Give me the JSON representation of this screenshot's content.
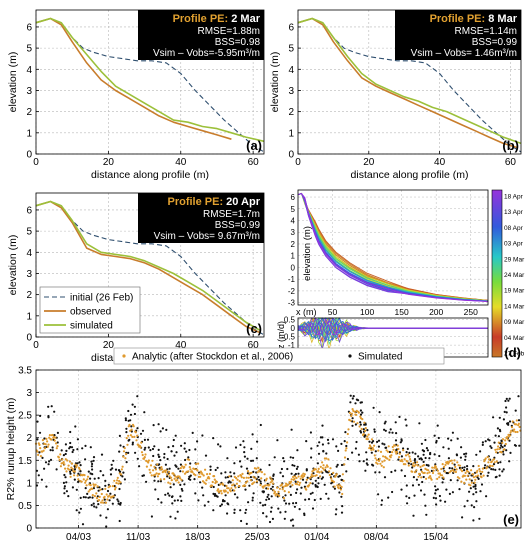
{
  "chart_data": [
    {
      "type": "line",
      "panel": "(a)",
      "info_box": {
        "title_prefix": "Profile PE: ",
        "title_date": "2 Mar",
        "rmse": "RMSE=1.88m",
        "bss": "BSS=0.98",
        "vdiff": "Vsim – Vobs=-5.95m³/m"
      },
      "xlabel": "distance along profile (m)",
      "ylabel": "elevation (m)",
      "xlim": [
        0,
        63
      ],
      "ylim": [
        0,
        6.8
      ],
      "xticks": [
        0,
        20,
        40,
        60
      ],
      "yticks": [
        0,
        1,
        2,
        3,
        4,
        5,
        6
      ],
      "series": [
        {
          "key": "initial",
          "color": "#2f4f6f",
          "dashed": true,
          "x": [
            0,
            4,
            7,
            10,
            13,
            16,
            20,
            24,
            28,
            32,
            36,
            40,
            44,
            48,
            52,
            56,
            60,
            63
          ],
          "y": [
            6.2,
            6.4,
            6.2,
            5.5,
            5.0,
            4.8,
            4.6,
            4.5,
            4.4,
            4.4,
            4.3,
            3.8,
            3.0,
            2.3,
            1.6,
            1.0,
            0.4,
            0.1
          ]
        },
        {
          "key": "observed",
          "color": "#c87d2c",
          "x": [
            0,
            4,
            7,
            10,
            14,
            18,
            22,
            26,
            30,
            34,
            38,
            42,
            46,
            50,
            54
          ],
          "y": [
            6.2,
            6.4,
            6.1,
            5.3,
            4.3,
            3.5,
            3.0,
            2.6,
            2.2,
            1.8,
            1.5,
            1.3,
            1.1,
            0.9,
            0.7
          ]
        },
        {
          "key": "simulated",
          "color": "#9cc03a",
          "x": [
            0,
            4,
            7,
            10,
            14,
            18,
            22,
            26,
            30,
            34,
            38,
            42,
            46,
            50,
            54,
            58,
            63
          ],
          "y": [
            6.2,
            6.4,
            6.2,
            5.5,
            4.7,
            3.9,
            3.2,
            2.8,
            2.4,
            2.0,
            1.6,
            1.5,
            1.3,
            1.2,
            1.0,
            0.8,
            0.6
          ]
        }
      ]
    },
    {
      "type": "line",
      "panel": "(b)",
      "info_box": {
        "title_prefix": "Profile PE: ",
        "title_date": "8 Mar",
        "rmse": "RMSE=1.14m",
        "bss": "BSS=0.99",
        "vdiff": "Vsim – Vobs= 1.46m³/m"
      },
      "xlabel": "distance along profile (m)",
      "ylabel": "elevation (m)",
      "xlim": [
        0,
        63
      ],
      "ylim": [
        0,
        6.8
      ],
      "xticks": [
        0,
        20,
        40,
        60
      ],
      "yticks": [
        0,
        1,
        2,
        3,
        4,
        5,
        6
      ],
      "series": [
        {
          "key": "initial",
          "color": "#2f4f6f",
          "dashed": true,
          "x": [
            0,
            4,
            7,
            10,
            13,
            16,
            20,
            24,
            28,
            32,
            36,
            40,
            44,
            48,
            52,
            56,
            60,
            63
          ],
          "y": [
            6.2,
            6.4,
            6.2,
            5.5,
            5.0,
            4.8,
            4.6,
            4.5,
            4.4,
            4.4,
            4.3,
            3.8,
            3.0,
            2.3,
            1.6,
            1.0,
            0.4,
            0.1
          ]
        },
        {
          "key": "observed",
          "color": "#c87d2c",
          "x": [
            0,
            4,
            7,
            10,
            14,
            18,
            22,
            26,
            30,
            34,
            38,
            42,
            46,
            50,
            54,
            58,
            62
          ],
          "y": [
            6.2,
            6.4,
            6.1,
            5.3,
            4.4,
            3.6,
            3.2,
            2.9,
            2.6,
            2.3,
            2.0,
            1.7,
            1.4,
            1.1,
            0.8,
            0.5,
            0.3
          ]
        },
        {
          "key": "simulated",
          "color": "#9cc03a",
          "x": [
            0,
            4,
            7,
            10,
            14,
            18,
            22,
            26,
            30,
            34,
            38,
            42,
            46,
            50,
            54,
            58,
            63
          ],
          "y": [
            6.2,
            6.4,
            6.2,
            5.5,
            4.6,
            3.8,
            3.3,
            3.0,
            2.7,
            2.5,
            2.2,
            2.0,
            1.7,
            1.4,
            1.1,
            0.8,
            0.5
          ]
        }
      ]
    },
    {
      "type": "line",
      "panel": "(c)",
      "info_box": {
        "title_prefix": "Profile PE: ",
        "title_date": "20 Apr",
        "rmse": "RMSE=1.7m",
        "bss": "BSS=0.99",
        "vdiff": "Vsim – Vobs= 9.67m³/m"
      },
      "legend": {
        "initial": "initial (26 Feb)",
        "observed": "observed",
        "simulated": "simulated"
      },
      "xlabel": "distance along profile (m)",
      "ylabel": "elevation (m)",
      "xlim": [
        0,
        63
      ],
      "ylim": [
        0,
        6.8
      ],
      "xticks": [
        0,
        20,
        40,
        60
      ],
      "yticks": [
        0,
        1,
        2,
        3,
        4,
        5,
        6
      ],
      "series": [
        {
          "key": "initial",
          "color": "#2f4f6f",
          "dashed": true,
          "x": [
            0,
            4,
            7,
            10,
            13,
            16,
            20,
            24,
            28,
            32,
            36,
            40,
            44,
            48,
            52,
            56,
            60,
            63
          ],
          "y": [
            6.2,
            6.4,
            6.2,
            5.5,
            5.0,
            4.8,
            4.6,
            4.5,
            4.4,
            4.4,
            4.3,
            3.8,
            3.0,
            2.3,
            1.6,
            1.0,
            0.4,
            0.1
          ]
        },
        {
          "key": "observed",
          "color": "#c87d2c",
          "x": [
            0,
            4,
            7,
            10,
            14,
            18,
            22,
            26,
            30,
            34,
            38,
            42,
            46,
            50,
            54,
            58,
            62
          ],
          "y": [
            6.2,
            6.4,
            6.1,
            5.4,
            4.2,
            3.9,
            3.8,
            3.7,
            3.5,
            3.2,
            2.8,
            2.4,
            2.0,
            1.5,
            1.0,
            0.5,
            0.2
          ]
        },
        {
          "key": "simulated",
          "color": "#9cc03a",
          "x": [
            0,
            4,
            7,
            10,
            14,
            18,
            22,
            26,
            30,
            34,
            38,
            42,
            46,
            50,
            54,
            58,
            62
          ],
          "y": [
            6.2,
            6.4,
            6.2,
            5.5,
            4.4,
            4.0,
            3.9,
            3.8,
            3.6,
            3.3,
            3.0,
            2.6,
            2.2,
            1.7,
            1.2,
            0.7,
            0.3
          ]
        }
      ]
    },
    {
      "type": "line",
      "panel": "(d)",
      "xlabel": "x (m)",
      "ylabel_top": "elevation (m)",
      "ylabel_bottom": "dz (m/d)",
      "xlim": [
        0,
        275
      ],
      "xticks": [
        50,
        100,
        150,
        200,
        250
      ],
      "top_ylim": [
        -3.2,
        6.6
      ],
      "top_yticks": [
        -3,
        -2,
        -1,
        0,
        1,
        2,
        3,
        4,
        5,
        6
      ],
      "bottom_ylim": [
        -1.7,
        0.6
      ],
      "bottom_yticks": [
        0.5,
        0,
        -0.5,
        -1,
        -1.5
      ],
      "colorbar_ticks": [
        "18 Apr",
        "13 Apr",
        "08 Apr",
        "03 Apr",
        "29 Mar",
        "24 Mar",
        "19 Mar",
        "14 Mar",
        "09 Mar",
        "04 Mar",
        "27 Feb"
      ],
      "profile_x": [
        0,
        5,
        10,
        15,
        20,
        25,
        30,
        40,
        55,
        75,
        100,
        130,
        160,
        200,
        240,
        275
      ],
      "profile_y_start": [
        6.2,
        6.3,
        5.5,
        4.8,
        4.3,
        3.8,
        3.2,
        2.2,
        1.2,
        0.3,
        -0.6,
        -1.3,
        -1.8,
        -2.3,
        -2.6,
        -2.8
      ],
      "profile_y_end": [
        6.2,
        6.3,
        5.8,
        4.5,
        3.6,
        2.7,
        2.0,
        1.0,
        0.0,
        -0.8,
        -1.5,
        -2.0,
        -2.3,
        -2.6,
        -2.8,
        -2.9
      ]
    },
    {
      "type": "scatter",
      "panel": "(e)",
      "ylabel": "R2% runup height (m)",
      "legend": {
        "analytic": "Analytic (after Stockdon et al., 2006)",
        "simulated": "Simulated"
      },
      "analytic_color": "#e09a2e",
      "simulated_color": "#111111",
      "ylim": [
        0,
        3.5
      ],
      "yticks": [
        0,
        0.5,
        1,
        1.5,
        2,
        2.5,
        3,
        3.5
      ],
      "xlim_days": [
        0,
        57
      ],
      "xticks_days": [
        5,
        12,
        19,
        26,
        33,
        40,
        47
      ],
      "xtick_labels": [
        "04/03",
        "11/03",
        "18/03",
        "25/03",
        "01/04",
        "08/04",
        "15/04"
      ],
      "daily_mean": [
        1.7,
        1.8,
        2.0,
        1.5,
        1.3,
        1.2,
        1.0,
        0.8,
        0.7,
        0.8,
        1.2,
        2.2,
        2.0,
        1.4,
        1.3,
        1.2,
        1.1,
        1.2,
        1.4,
        1.3,
        1.1,
        1.0,
        0.9,
        1.0,
        1.0,
        1.1,
        1.2,
        1.0,
        0.9,
        0.8,
        1.0,
        1.1,
        1.0,
        1.2,
        1.5,
        1.1,
        0.9,
        2.6,
        2.4,
        2.0,
        1.6,
        1.5,
        1.8,
        1.6,
        1.4,
        1.3,
        1.2,
        1.2,
        1.3,
        1.4,
        1.2,
        1.1,
        1.2,
        1.4,
        1.6,
        1.9,
        2.2,
        2.3
      ]
    }
  ],
  "panel_labels": [
    "(a)",
    "(b)",
    "(c)",
    "(d)",
    "(e)"
  ]
}
